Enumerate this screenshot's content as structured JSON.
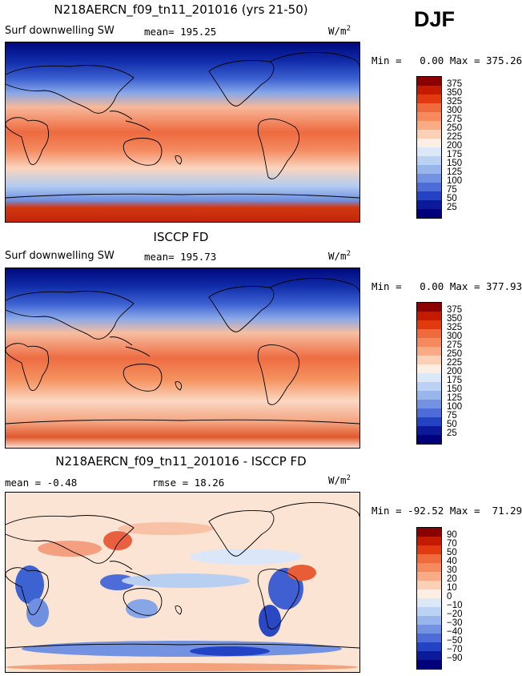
{
  "season": "DJF",
  "chart_data": [
    {
      "type": "heatmap",
      "title": "N218AERCN_f09_tn11_201016 (yrs 21-50)",
      "field": "Surf downwelling SW",
      "stat_text": "mean= 195.25",
      "mean": 195.25,
      "units": "W/m",
      "units_sup": "2",
      "min": 0.0,
      "max": 375.26,
      "min_label": "Min =",
      "min_value": "0.00",
      "max_label": "Max =",
      "max_value": "375.26",
      "levels": [
        25,
        50,
        75,
        100,
        125,
        150,
        175,
        200,
        225,
        250,
        275,
        300,
        325,
        350,
        375
      ],
      "level_labels": [
        "375",
        "350",
        "325",
        "300",
        "275",
        "250",
        "225",
        "200",
        "175",
        "150",
        "125",
        "100",
        "75",
        "50",
        "25"
      ]
    },
    {
      "type": "heatmap",
      "title": "ISCCP FD",
      "field": "Surf downwelling SW",
      "stat_text": "mean= 195.73",
      "mean": 195.73,
      "units": "W/m",
      "units_sup": "2",
      "min": 0.0,
      "max": 377.93,
      "min_label": "Min =",
      "min_value": "0.00",
      "max_label": "Max =",
      "max_value": "377.93",
      "levels": [
        25,
        50,
        75,
        100,
        125,
        150,
        175,
        200,
        225,
        250,
        275,
        300,
        325,
        350,
        375
      ],
      "level_labels": [
        "375",
        "350",
        "325",
        "300",
        "275",
        "250",
        "225",
        "200",
        "175",
        "150",
        "125",
        "100",
        "75",
        "50",
        "25"
      ]
    },
    {
      "type": "heatmap",
      "title": "N218AERCN_f09_tn11_201016 - ISCCP FD",
      "stat_text": "mean =  -0.48",
      "mean": -0.48,
      "rmse_text": "rmse =  18.26",
      "rmse": 18.26,
      "units": "W/m",
      "units_sup": "2",
      "min": -92.52,
      "max": 71.29,
      "min_label": "Min =",
      "min_value": "-92.52",
      "max_label": "Max =",
      "max_value": "71.29",
      "levels": [
        -90,
        -70,
        -50,
        -40,
        -30,
        -20,
        -10,
        0,
        10,
        20,
        30,
        40,
        50,
        70,
        90
      ],
      "level_labels": [
        "90",
        "70",
        "50",
        "40",
        "30",
        "20",
        "10",
        "0",
        "−10",
        "−20",
        "−30",
        "−40",
        "−50",
        "−70",
        "−90"
      ]
    }
  ],
  "colorbar_colors": [
    "#8b0000",
    "#c41a00",
    "#e23a10",
    "#ef6a3c",
    "#f68a5e",
    "#f9ab86",
    "#fbd0b4",
    "#fdeee4",
    "#dce8f8",
    "#bcd2f4",
    "#99b6ec",
    "#7393e2",
    "#4d6cd8",
    "#2342c4",
    "#0a1a9a",
    "#00007a"
  ]
}
